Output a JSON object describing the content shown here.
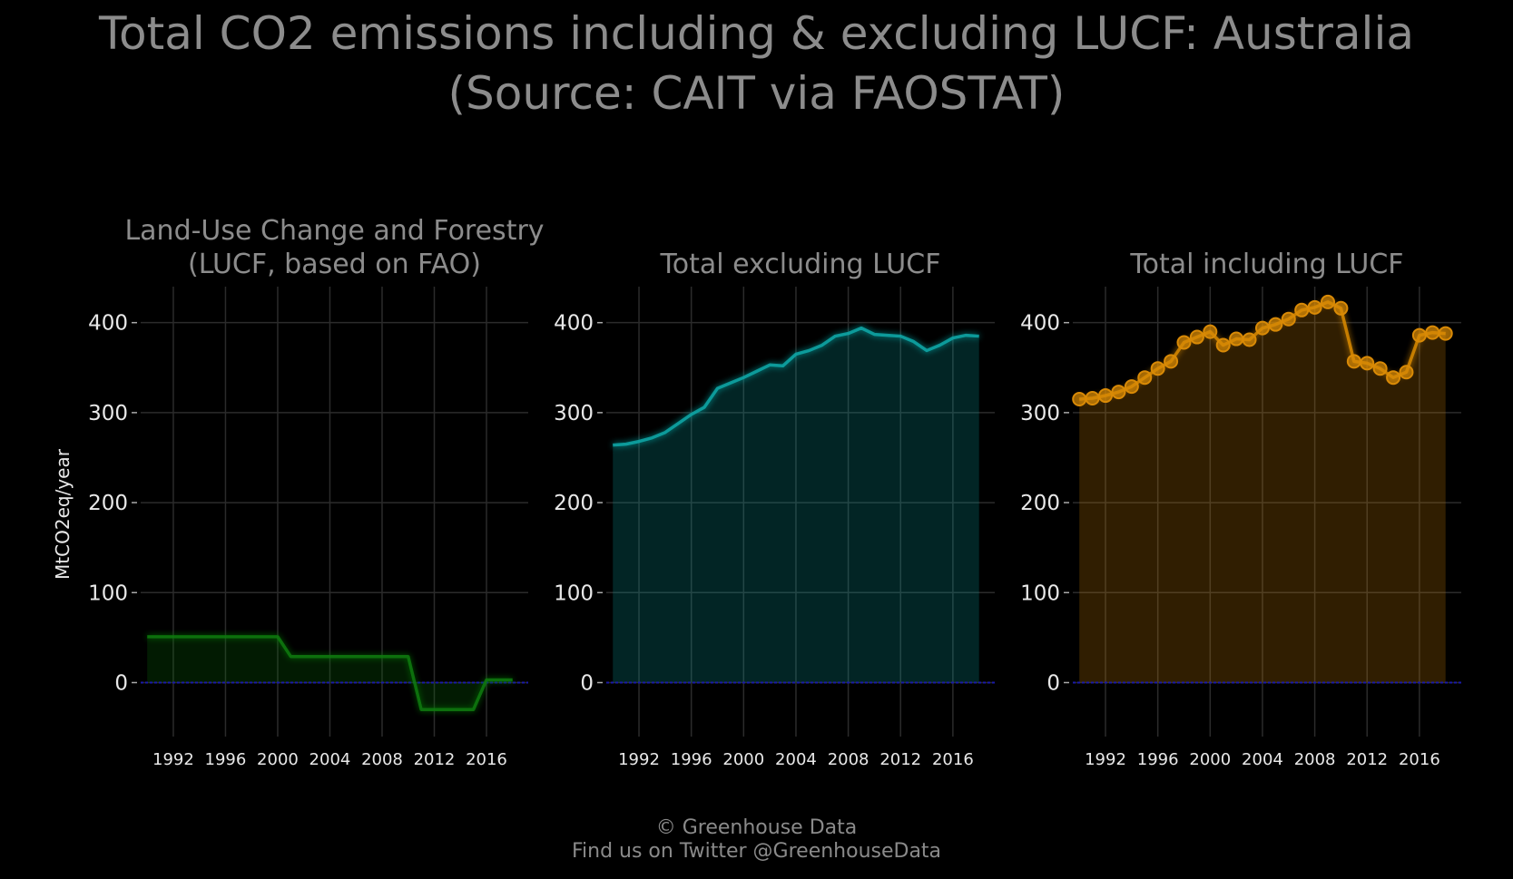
{
  "title": {
    "line1": "Total CO2 emissions including & excluding LUCF: Australia",
    "line2": "(Source: CAIT via FAOSTAT)"
  },
  "footer": {
    "line1": "© Greenhouse Data",
    "line2": "Find us on Twitter @GreenhouseData"
  },
  "ylabel": "MtCO2eq/year",
  "colors": {
    "background": "#000000",
    "grid": "#2b2b2b",
    "zero_line": "#1a1aa8",
    "lucf": "#0a7a0a",
    "excl": "#0aa9a9",
    "incl": "#d98a06"
  },
  "chart_data": [
    {
      "type": "area",
      "title_lines": [
        "Land-Use Change and Forestry",
        "(LUCF, based on FAO)"
      ],
      "color_key": "lucf",
      "markers": false,
      "ylim": [
        -60,
        440
      ],
      "yticks": [
        0,
        100,
        200,
        300,
        400
      ],
      "xticks": [
        1992,
        1996,
        2000,
        2004,
        2008,
        2012,
        2016
      ],
      "x": [
        1990,
        1991,
        1992,
        1993,
        1994,
        1995,
        1996,
        1997,
        1998,
        1999,
        2000,
        2001,
        2002,
        2003,
        2004,
        2005,
        2006,
        2007,
        2008,
        2009,
        2010,
        2011,
        2012,
        2013,
        2014,
        2015,
        2016,
        2017,
        2018
      ],
      "y": [
        51,
        51,
        51,
        51,
        51,
        51,
        51,
        51,
        51,
        51,
        51,
        29,
        29,
        29,
        29,
        29,
        29,
        29,
        29,
        29,
        29,
        -30,
        -30,
        -30,
        -30,
        -30,
        3,
        3,
        3
      ]
    },
    {
      "type": "area",
      "title_lines": [
        "Total excluding LUCF"
      ],
      "color_key": "excl",
      "markers": false,
      "ylim": [
        -60,
        440
      ],
      "yticks": [
        0,
        100,
        200,
        300,
        400
      ],
      "xticks": [
        1992,
        1996,
        2000,
        2004,
        2008,
        2012,
        2016
      ],
      "x": [
        1990,
        1991,
        1992,
        1993,
        1994,
        1995,
        1996,
        1997,
        1998,
        1999,
        2000,
        2001,
        2002,
        2003,
        2004,
        2005,
        2006,
        2007,
        2008,
        2009,
        2010,
        2011,
        2012,
        2013,
        2014,
        2015,
        2016,
        2017,
        2018
      ],
      "y": [
        264,
        265,
        268,
        272,
        278,
        288,
        298,
        306,
        327,
        333,
        339,
        346,
        353,
        352,
        365,
        369,
        375,
        385,
        388,
        394,
        387,
        386,
        385,
        379,
        369,
        375,
        383,
        386,
        385
      ]
    },
    {
      "type": "area",
      "title_lines": [
        "Total including LUCF"
      ],
      "color_key": "incl",
      "markers": true,
      "ylim": [
        -60,
        440
      ],
      "yticks": [
        0,
        100,
        200,
        300,
        400
      ],
      "xticks": [
        1992,
        1996,
        2000,
        2004,
        2008,
        2012,
        2016
      ],
      "x": [
        1990,
        1991,
        1992,
        1993,
        1994,
        1995,
        1996,
        1997,
        1998,
        1999,
        2000,
        2001,
        2002,
        2003,
        2004,
        2005,
        2006,
        2007,
        2008,
        2009,
        2010,
        2011,
        2012,
        2013,
        2014,
        2015,
        2016,
        2017,
        2018
      ],
      "y": [
        315,
        316,
        319,
        323,
        329,
        339,
        349,
        357,
        378,
        384,
        390,
        375,
        382,
        381,
        394,
        398,
        404,
        414,
        417,
        423,
        416,
        357,
        355,
        349,
        339,
        345,
        386,
        389,
        388
      ]
    }
  ]
}
